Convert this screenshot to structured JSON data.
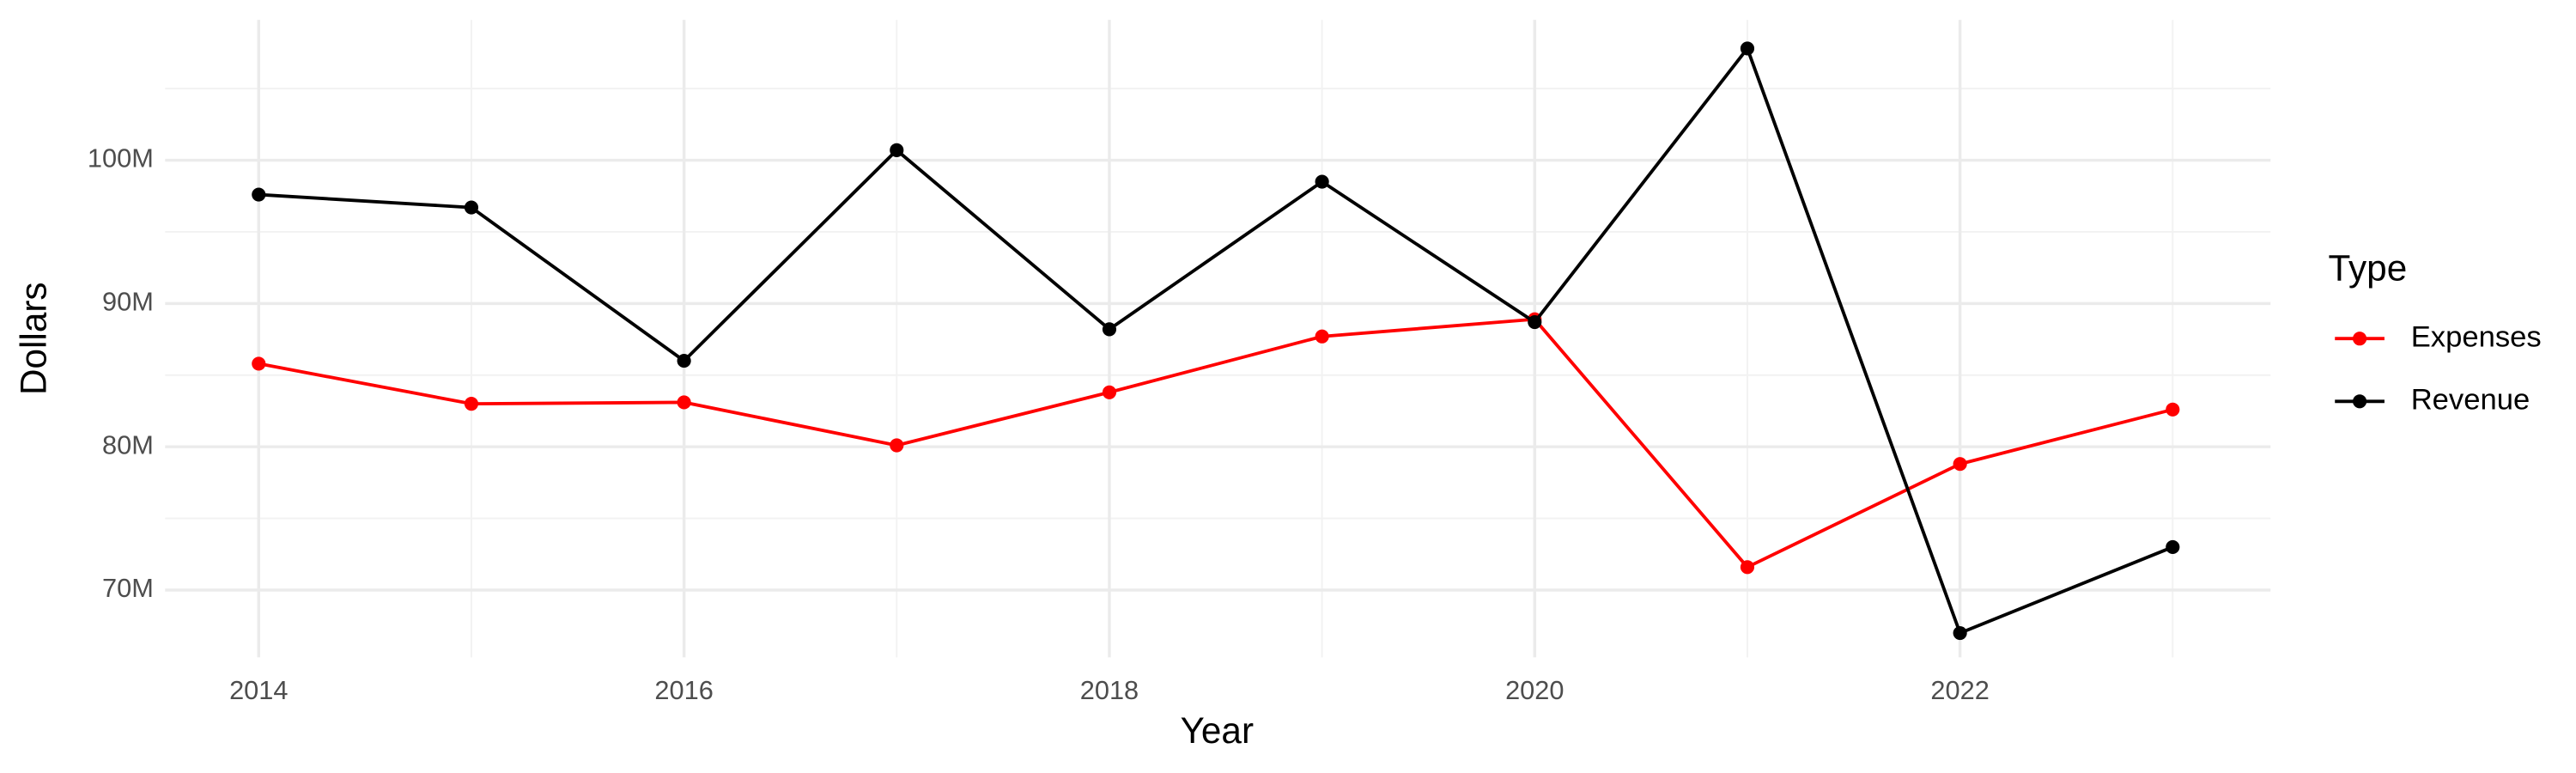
{
  "chart_data": {
    "type": "line",
    "x_label": "Year",
    "y_label": "Dollars",
    "legend_title": "Type",
    "legend_position": "right",
    "grid": true,
    "x": [
      2014,
      2015,
      2016,
      2017,
      2018,
      2019,
      2020,
      2021,
      2022,
      2023
    ],
    "series": [
      {
        "name": "Expenses",
        "color": "#ff0000",
        "values": [
          85800000,
          83000000,
          83100000,
          80100000,
          83800000,
          87700000,
          88900000,
          71600000,
          78800000,
          82600000
        ]
      },
      {
        "name": "Revenue",
        "color": "#000000",
        "values": [
          97600000,
          96700000,
          86000000,
          100700000,
          88200000,
          98500000,
          88700000,
          107800000,
          67000000,
          73000000
        ]
      }
    ],
    "xlim": [
      2013.56,
      2023.46
    ],
    "xticks": [
      2014,
      2016,
      2018,
      2020,
      2022
    ],
    "ylim": [
      65300000,
      109800000
    ],
    "yticks": [
      {
        "value": 70000000,
        "label": "70M"
      },
      {
        "value": 80000000,
        "label": "80M"
      },
      {
        "value": 90000000,
        "label": "90M"
      },
      {
        "value": 100000000,
        "label": "100M"
      }
    ]
  }
}
